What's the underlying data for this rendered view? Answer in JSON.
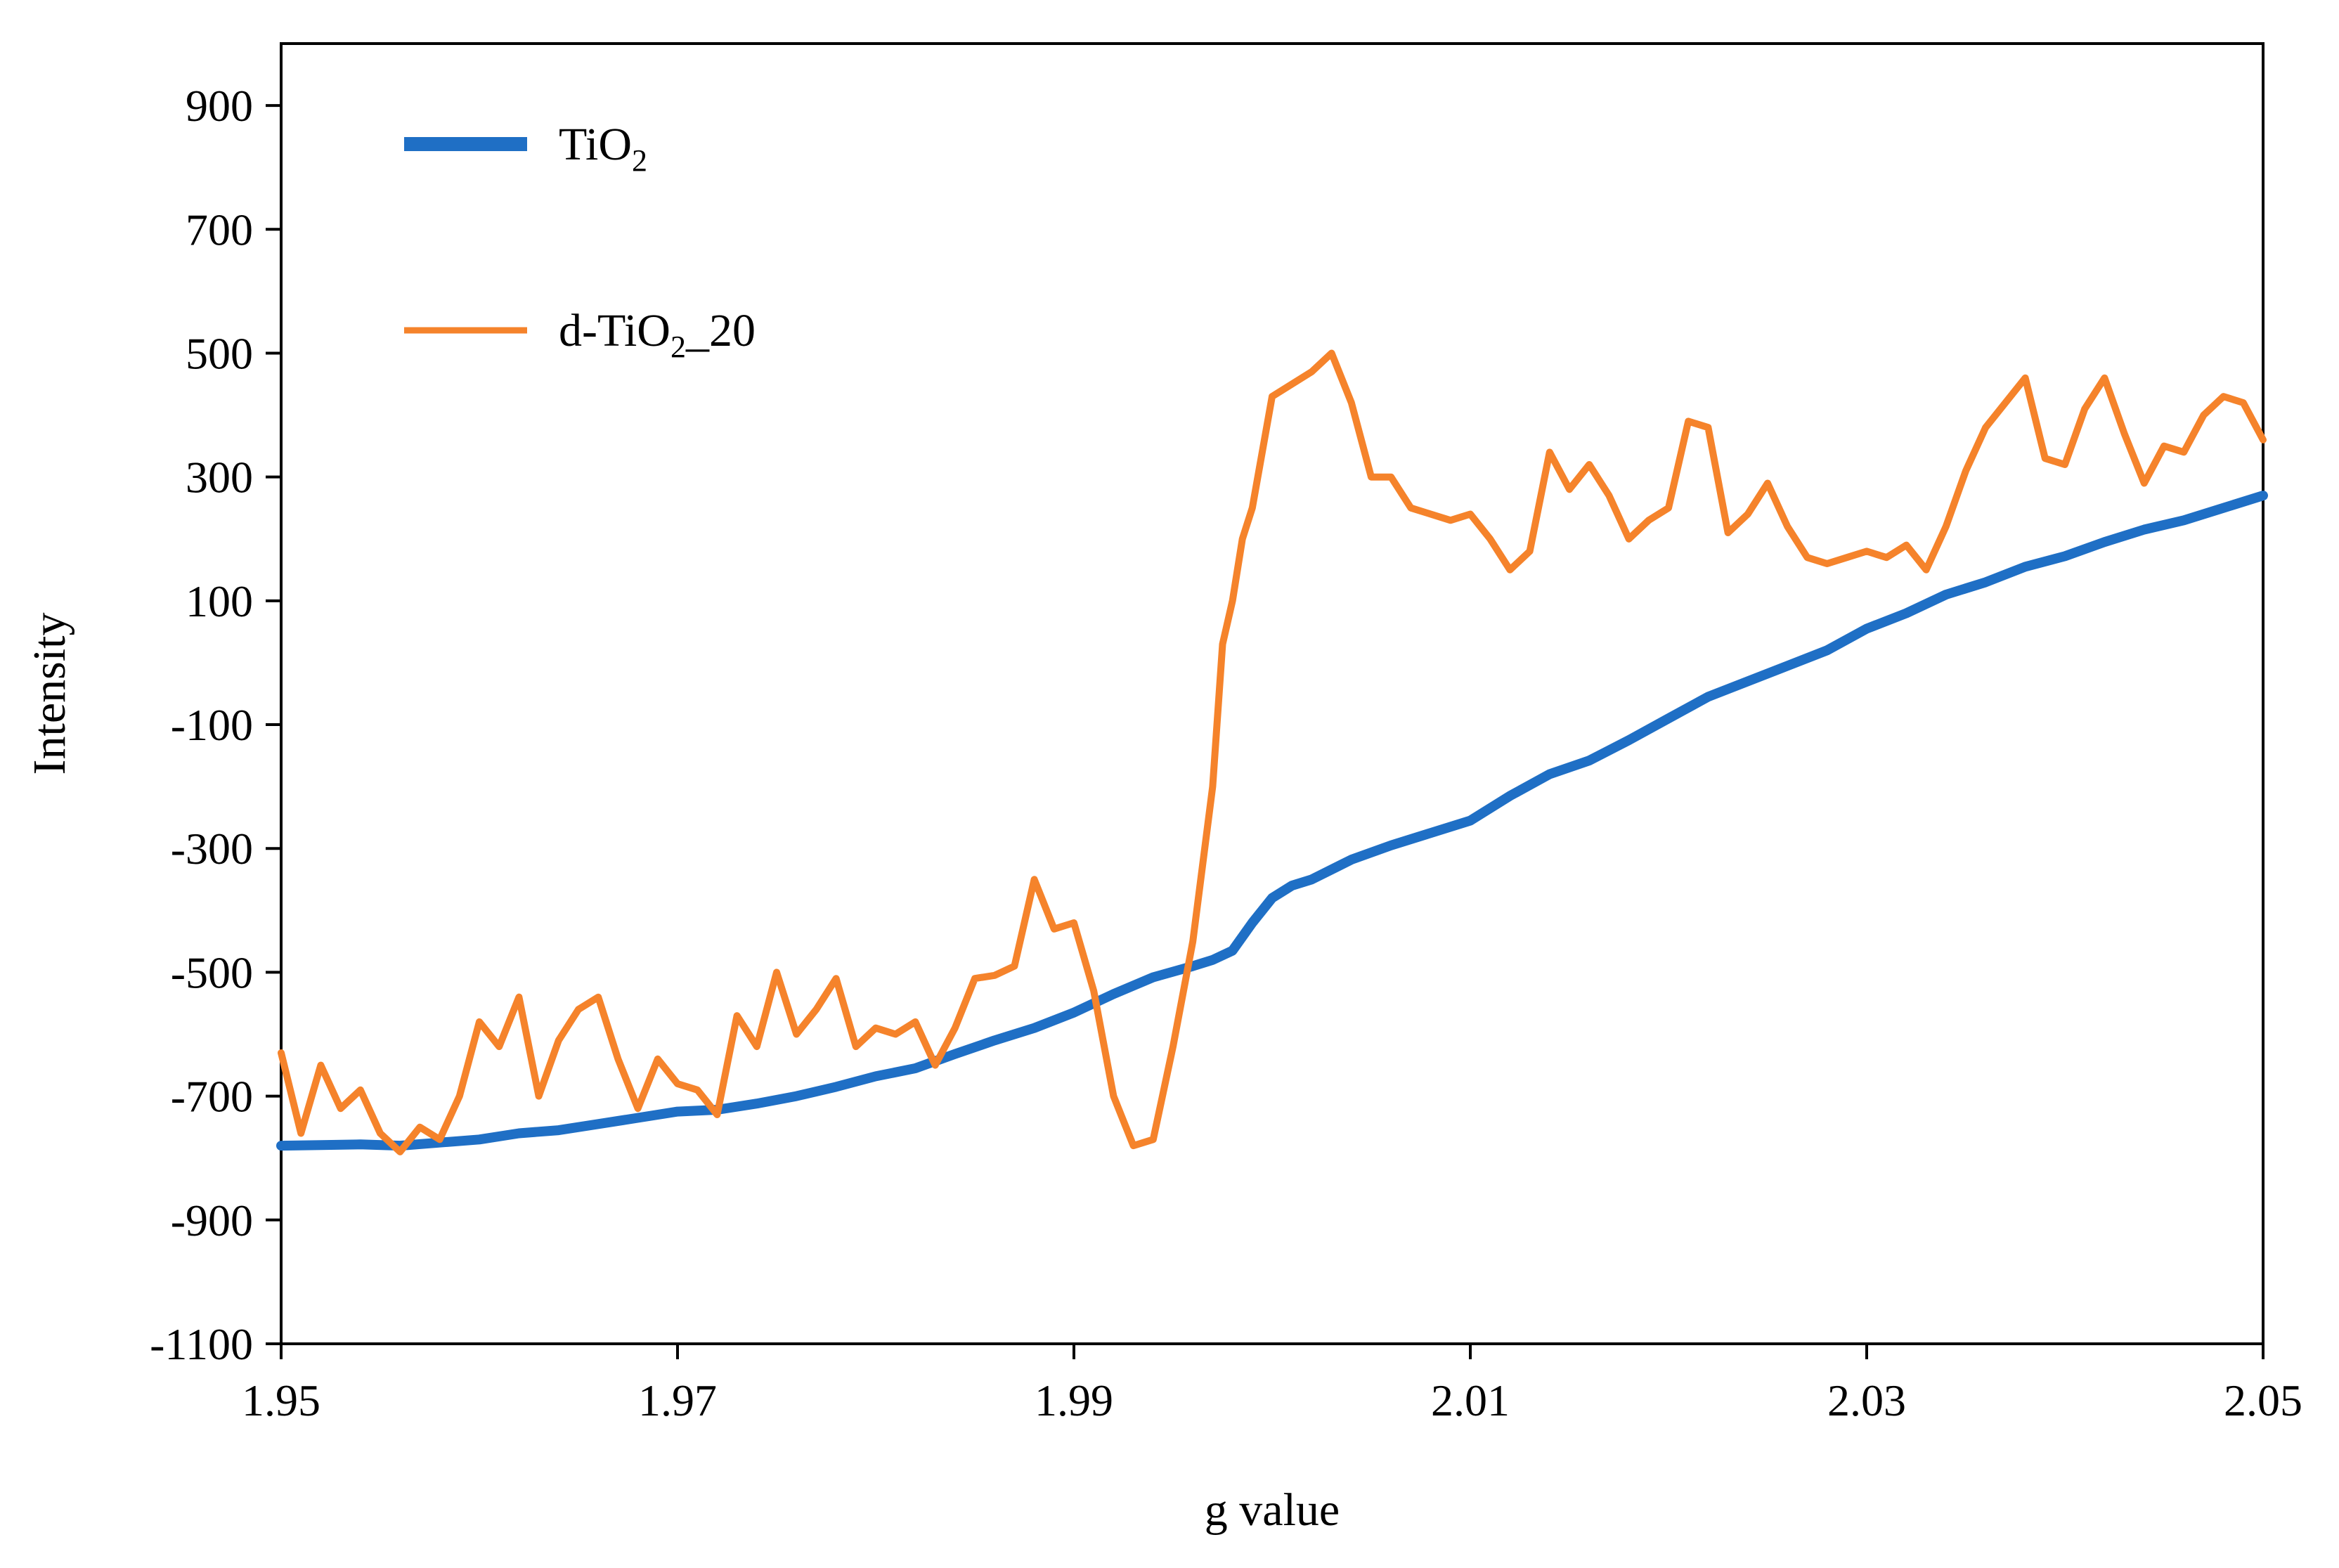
{
  "chart_data": {
    "type": "line",
    "xlabel": "g value",
    "ylabel": "Intensity",
    "xlim": [
      1.95,
      2.05
    ],
    "ylim": [
      -1100,
      1000
    ],
    "x_ticks": [
      1.95,
      1.97,
      1.99,
      2.01,
      2.03,
      2.05
    ],
    "x_tick_labels": [
      "1.95",
      "1.97",
      "1.99",
      "2.01",
      "2.03",
      "2.05"
    ],
    "y_ticks": [
      900,
      700,
      500,
      300,
      100,
      -100,
      -300,
      -500,
      -700,
      -900,
      -1100
    ],
    "y_tick_labels": [
      "900",
      "700",
      "500",
      "300",
      "100",
      "-100",
      "-300",
      "-500",
      "-700",
      "-900",
      "-1100"
    ],
    "grid": false,
    "legend_position": "top-left",
    "series": [
      {
        "name": "TiO2",
        "label_main": "TiO",
        "label_sub": "2",
        "label_suffix": "",
        "color": "#1f6fc5",
        "x": [
          1.95,
          1.952,
          1.954,
          1.956,
          1.958,
          1.96,
          1.962,
          1.964,
          1.966,
          1.968,
          1.97,
          1.972,
          1.974,
          1.976,
          1.978,
          1.98,
          1.982,
          1.984,
          1.986,
          1.988,
          1.99,
          1.992,
          1.994,
          1.996,
          1.997,
          1.998,
          1.999,
          2.0,
          2.001,
          2.002,
          2.004,
          2.006,
          2.008,
          2.01,
          2.012,
          2.014,
          2.016,
          2.018,
          2.02,
          2.022,
          2.024,
          2.026,
          2.028,
          2.03,
          2.032,
          2.034,
          2.036,
          2.038,
          2.04,
          2.042,
          2.044,
          2.046,
          2.048,
          2.05
        ],
        "y": [
          -780,
          -779,
          -778,
          -780,
          -775,
          -770,
          -760,
          -755,
          -745,
          -735,
          -725,
          -722,
          -712,
          -700,
          -685,
          -668,
          -655,
          -632,
          -610,
          -590,
          -565,
          -535,
          -508,
          -490,
          -480,
          -465,
          -420,
          -380,
          -360,
          -350,
          -318,
          -295,
          -275,
          -255,
          -215,
          -180,
          -158,
          -125,
          -90,
          -55,
          -30,
          -5,
          20,
          55,
          80,
          110,
          130,
          155,
          172,
          195,
          215,
          230,
          250,
          270
        ]
      },
      {
        "name": "d-TiO2_20",
        "label_main": "d-TiO",
        "label_sub": "2",
        "label_suffix": "_20",
        "color": "#f5832b",
        "x": [
          1.95,
          1.951,
          1.952,
          1.953,
          1.954,
          1.955,
          1.956,
          1.957,
          1.958,
          1.959,
          1.96,
          1.961,
          1.962,
          1.963,
          1.964,
          1.965,
          1.966,
          1.967,
          1.968,
          1.969,
          1.97,
          1.971,
          1.972,
          1.973,
          1.974,
          1.975,
          1.976,
          1.977,
          1.978,
          1.979,
          1.98,
          1.981,
          1.982,
          1.983,
          1.984,
          1.985,
          1.986,
          1.987,
          1.988,
          1.989,
          1.99,
          1.991,
          1.992,
          1.993,
          1.994,
          1.995,
          1.996,
          1.997,
          1.9975,
          1.998,
          1.9985,
          1.999,
          2.0,
          2.001,
          2.002,
          2.003,
          2.004,
          2.005,
          2.006,
          2.007,
          2.008,
          2.009,
          2.01,
          2.011,
          2.012,
          2.013,
          2.014,
          2.015,
          2.016,
          2.017,
          2.018,
          2.019,
          2.02,
          2.021,
          2.022,
          2.023,
          2.024,
          2.025,
          2.026,
          2.027,
          2.028,
          2.029,
          2.03,
          2.031,
          2.032,
          2.033,
          2.034,
          2.035,
          2.036,
          2.037,
          2.038,
          2.039,
          2.04,
          2.041,
          2.042,
          2.043,
          2.044,
          2.045,
          2.046,
          2.047,
          2.048,
          2.049,
          2.05
        ],
        "y": [
          -630,
          -760,
          -650,
          -720,
          -690,
          -760,
          -790,
          -750,
          -770,
          -700,
          -580,
          -620,
          -540,
          -700,
          -610,
          -560,
          -540,
          -640,
          -720,
          -640,
          -680,
          -690,
          -730,
          -570,
          -620,
          -500,
          -600,
          -560,
          -510,
          -620,
          -590,
          -600,
          -580,
          -650,
          -590,
          -510,
          -505,
          -490,
          -350,
          -430,
          -420,
          -530,
          -700,
          -780,
          -770,
          -620,
          -450,
          -200,
          30,
          100,
          200,
          250,
          430,
          450,
          470,
          500,
          420,
          300,
          300,
          250,
          240,
          230,
          240,
          200,
          150,
          180,
          340,
          280,
          320,
          270,
          200,
          230,
          250,
          390,
          380,
          210,
          240,
          290,
          220,
          170,
          160,
          170,
          180,
          170,
          190,
          150,
          220,
          310,
          380,
          420,
          460,
          330,
          320,
          410,
          460,
          370,
          290,
          350,
          340,
          400,
          430,
          420,
          360
        ]
      }
    ]
  }
}
